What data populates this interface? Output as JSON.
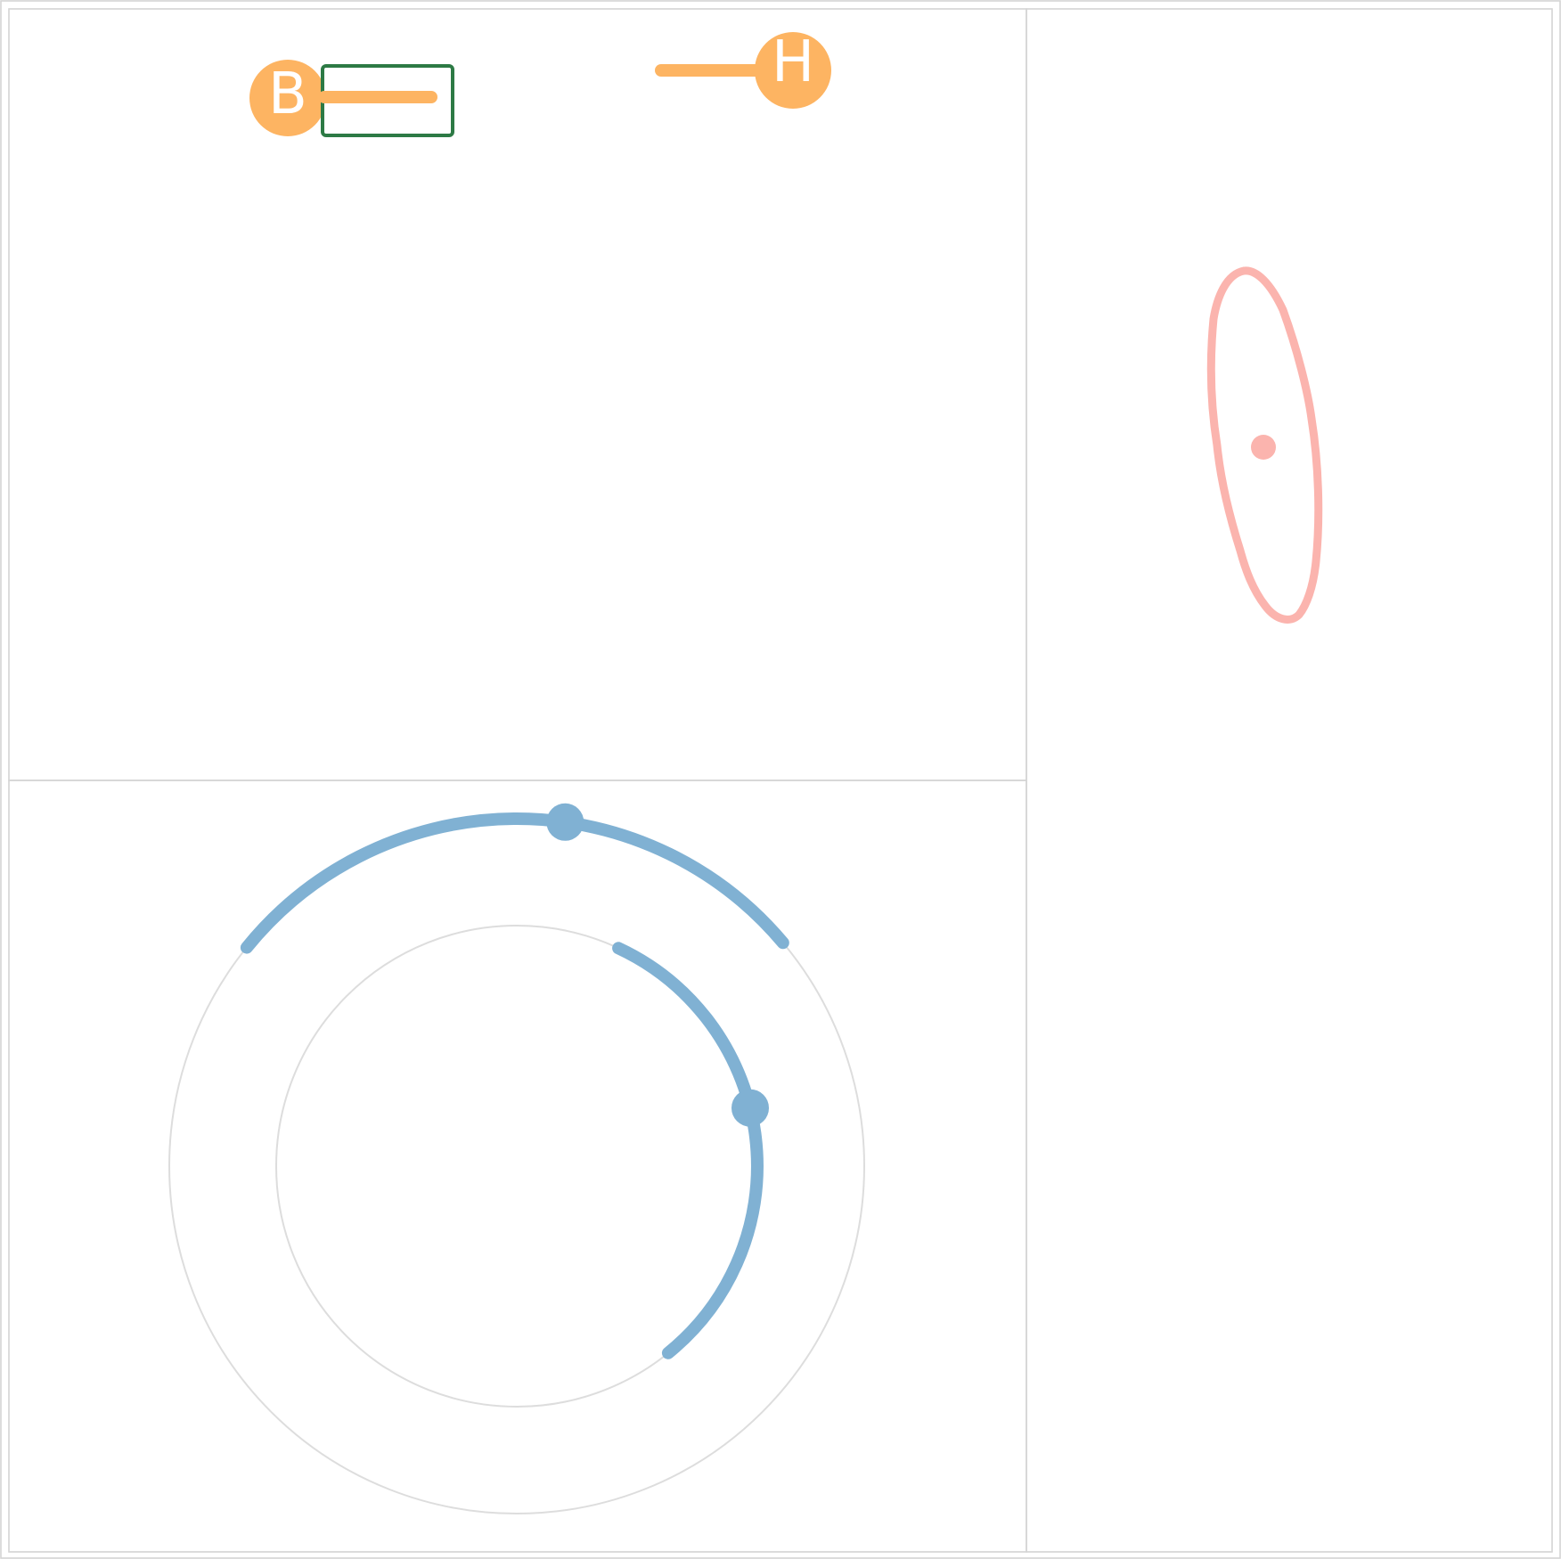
{
  "colors": {
    "orange": "#fdb462",
    "green": "#2d7a45",
    "blue": "#80b1d3",
    "pink": "#fbb4ae",
    "border": "#d4d4d4",
    "guide": "#dddddd"
  },
  "top_left": {
    "node_b": {
      "label": "B"
    },
    "node_h": {
      "label": "H"
    }
  },
  "rings": {
    "outer_arc": {
      "start_angle_deg": 141,
      "end_angle_deg": 40,
      "marker_angle_deg": 82
    },
    "inner_arc": {
      "start_angle_deg": 65,
      "end_angle_deg": -51,
      "marker_angle_deg": 14
    }
  }
}
